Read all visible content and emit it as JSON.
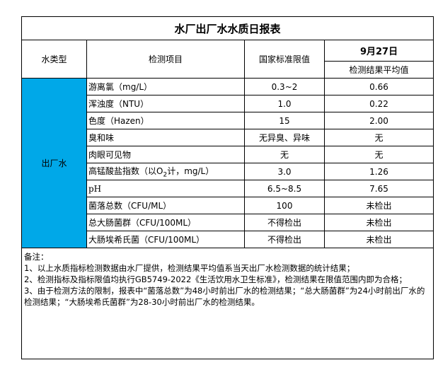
{
  "title": "水厂出厂水水质日报表",
  "header": {
    "water_type": "水类型",
    "item": "检测项目",
    "standard": "国家标准限值",
    "date": "9月27日",
    "result": "检测结果平均值"
  },
  "water_type_value": "出厂水",
  "colors": {
    "water_type_cell": "#00a8e8"
  },
  "rows": [
    {
      "item": "游离氯（mg/L）",
      "standard": "0.3~2",
      "result": "0.66"
    },
    {
      "item": "浑浊度（NTU）",
      "standard": "1.0",
      "result": "0.22"
    },
    {
      "item": "色度（Hazen）",
      "standard": "15",
      "result": "2.00"
    },
    {
      "item": "臭和味",
      "standard": "无异臭、异味",
      "result": "无"
    },
    {
      "item": "肉眼可见物",
      "standard": "无",
      "result": "无"
    },
    {
      "item_pre": "高锰酸盐指数（以O",
      "item_sub": "2",
      "item_post": "计，mg/L）",
      "standard": "3.0",
      "result": "1.26"
    },
    {
      "item": "pH",
      "standard": "6.5~8.5",
      "result": "7.65"
    },
    {
      "item": "菌落总数（CFU/ML）",
      "standard": "100",
      "result": "未检出"
    },
    {
      "item": "总大肠菌群（CFU/100ML）",
      "standard": "不得检出",
      "result": "未检出"
    },
    {
      "item": "大肠埃希氏菌（CFU/100ML）",
      "standard": "不得检出",
      "result": "未检出"
    }
  ],
  "notes": {
    "heading": "备注：",
    "lines": [
      "1、以上水质指标检测数据由水厂提供，检测结果平均值系当天出厂水检测数据的统计结果；",
      "2、检测指标及指标限值均执行GB5749-2022《生活饮用水卫生标准》，检测结果在限值范围内即为合格；",
      "3、由于检测方法的限制，报表中“菌落总数”为48小时前出厂水的检测结果；“总大肠菌群”为24小时前出厂水的检测结果；“大肠埃希氏菌群”为28-30小时前出厂水的检测结果。"
    ]
  }
}
